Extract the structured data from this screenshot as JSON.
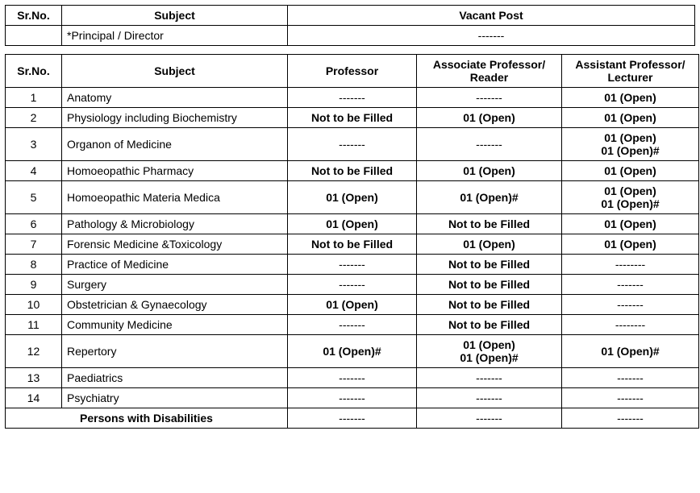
{
  "table1": {
    "headers": {
      "srno": "Sr.No.",
      "subject": "Subject",
      "vacant": "Vacant Post"
    },
    "row": {
      "subject": "*Principal / Director",
      "vacant": "-------"
    }
  },
  "table2": {
    "headers": {
      "srno": "Sr.No.",
      "subject": "Subject",
      "professor": "Professor",
      "associate": "Associate Professor/ Reader",
      "assistant": "Assistant Professor/ Lecturer"
    },
    "rows": [
      {
        "n": "1",
        "subject": "Anatomy",
        "prof": "-------",
        "assoc": "-------",
        "asst": [
          "01 (Open)"
        ]
      },
      {
        "n": "2",
        "subject": "Physiology including Biochemistry",
        "prof": "Not to be Filled",
        "assoc": "01 (Open)",
        "asst": [
          "01 (Open)"
        ]
      },
      {
        "n": "3",
        "subject": "Organon of Medicine",
        "prof": "-------",
        "assoc": "-------",
        "asst": [
          "01 (Open)",
          "01 (Open)#"
        ]
      },
      {
        "n": "4",
        "subject": "Homoeopathic Pharmacy",
        "prof": "Not to be Filled",
        "assoc": "01 (Open)",
        "asst": [
          "01 (Open)"
        ]
      },
      {
        "n": "5",
        "subject": "Homoeopathic Materia Medica",
        "prof": "01 (Open)",
        "assoc": "01 (Open)#",
        "asst": [
          "01 (Open)",
          "01 (Open)#"
        ]
      },
      {
        "n": "6",
        "subject": "Pathology & Microbiology",
        "prof": "01 (Open)",
        "assoc": "Not to be Filled",
        "asst": [
          "01 (Open)"
        ]
      },
      {
        "n": "7",
        "subject": "Forensic Medicine &Toxicology",
        "prof": "Not to be Filled",
        "assoc": "01 (Open)",
        "asst": [
          "01 (Open)"
        ]
      },
      {
        "n": "8",
        "subject": "Practice of Medicine",
        "prof": "-------",
        "assoc": "Not to be Filled",
        "asst": [
          "--------"
        ]
      },
      {
        "n": "9",
        "subject": "Surgery",
        "prof": "-------",
        "assoc": "Not to be Filled",
        "asst": [
          "-------"
        ]
      },
      {
        "n": "10",
        "subject": "Obstetrician & Gynaecology",
        "prof": "01 (Open)",
        "assoc": "Not to be Filled",
        "asst": [
          "-------"
        ]
      },
      {
        "n": "11",
        "subject": "Community Medicine",
        "prof": "-------",
        "assoc": "Not to be Filled",
        "asst": [
          "--------"
        ]
      },
      {
        "n": "12",
        "subject": "Repertory",
        "prof": "01 (Open)#",
        "assoc": [
          "01 (Open)",
          "01 (Open)#"
        ],
        "asst": [
          "01 (Open)#"
        ]
      },
      {
        "n": "13",
        "subject": "Paediatrics",
        "prof": "-------",
        "assoc": "-------",
        "asst": [
          "-------"
        ]
      },
      {
        "n": "14",
        "subject": "Psychiatry",
        "prof": "-------",
        "assoc": "-------",
        "asst": [
          "-------"
        ]
      }
    ],
    "footer": {
      "label": "Persons with Disabilities",
      "prof": "-------",
      "assoc": "-------",
      "asst": "-------"
    }
  },
  "style": {
    "bold_cells": [
      "Not to be Filled",
      "01 (Open)",
      "01 (Open)#"
    ]
  }
}
